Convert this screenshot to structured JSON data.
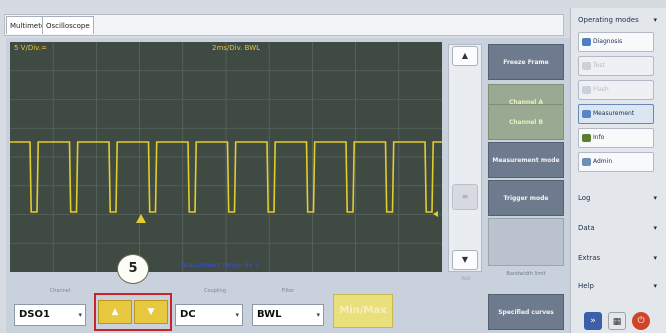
{
  "tabs": [
    {
      "label": "Multimeter"
    },
    {
      "label": "Oscilloscope"
    }
  ],
  "scope": {
    "channel_scale": "5 V/Div.=",
    "time_scale": "2ms/Div. BWL",
    "measurement_caption": "Measurement range: 4+ V",
    "waveform_color": "#e3cd2c",
    "grid_color": "#5a6560",
    "background_color": "#3f4a43"
  },
  "scroll": {
    "up_glyph": "▲",
    "down_glyph": "▼",
    "thumb_glyph": "≡",
    "side_note": "Roll"
  },
  "actions": {
    "freeze_frame": "Freeze Frame",
    "channel_a": "Channel A",
    "channel_b": "Channel B",
    "measurement_mode": "Measurement mode",
    "trigger_mode": "Trigger mode",
    "note": "Bandwidth limit",
    "specified_curves": "Specified curves"
  },
  "bottom": {
    "channel_label": "Channel",
    "channel_value": "DSO1",
    "coupling_label": "Coupling",
    "coupling_value": "DC",
    "filter_label": "Filter",
    "filter_value": "BWL",
    "up_glyph": "▲",
    "down_glyph": "▼",
    "minmax_label": "Min/Max",
    "callout_number": "5",
    "dropdown_glyph": "▾"
  },
  "sidebar": {
    "operating_modes": "Operating modes",
    "diagnosis": "Diagnosis",
    "item_disabled_1": "Test",
    "item_disabled_2": "Flash",
    "measurement": "Measurement",
    "info": "Info",
    "admin": "Admin",
    "log": "Log",
    "data": "Data",
    "extras": "Extras",
    "help": "Help",
    "arrow_glyph": "▾"
  },
  "colors": {
    "accent_yellow": "#e8c83f",
    "highlight_red": "#c4242a",
    "action_gray": "#6e7b8e",
    "action_green": "#9aaa92"
  }
}
